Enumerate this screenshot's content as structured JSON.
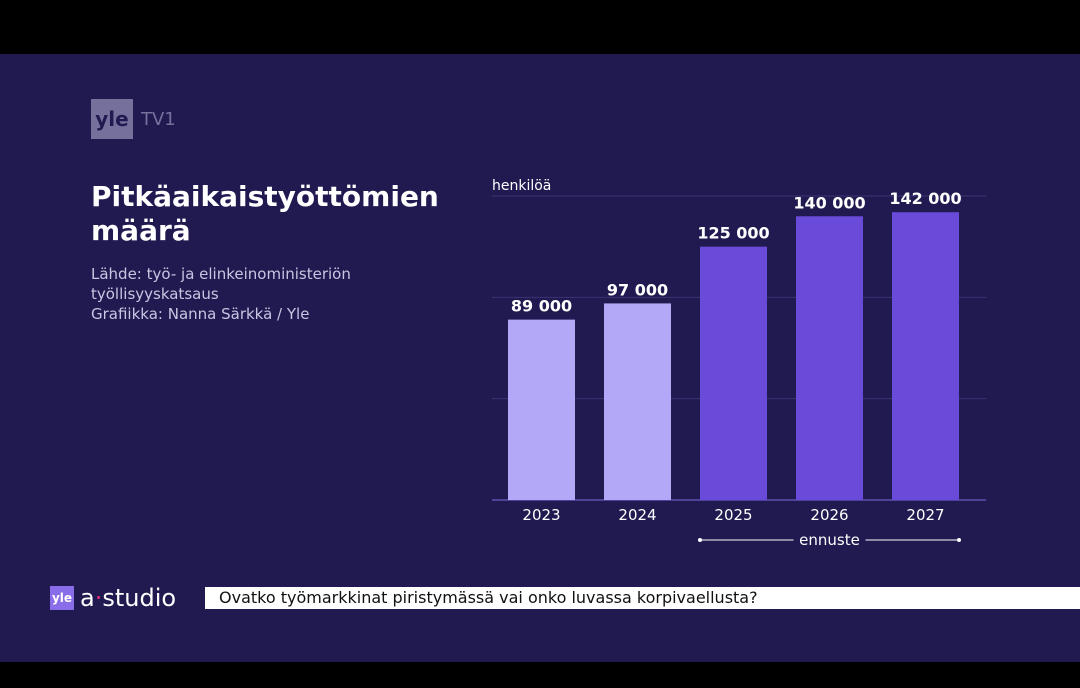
{
  "logo": {
    "brand": "yle",
    "channel": "TV1"
  },
  "title": "Pitkäaikaistyöttömien määrä",
  "source_lines": [
    "Lähde: työ- ja elinkeinoministeriön",
    "työllisyyskatsaus",
    "Grafiikka: Nanna Särkkä / Yle"
  ],
  "chart_data": {
    "type": "bar",
    "ylabel": "henkilöä",
    "categories": [
      "2023",
      "2024",
      "2025",
      "2026",
      "2027"
    ],
    "values": [
      89000,
      97000,
      125000,
      140000,
      142000
    ],
    "value_labels": [
      "89 000",
      "97 000",
      "125 000",
      "140 000",
      "142 000"
    ],
    "ylim": [
      0,
      150000
    ],
    "grid": true,
    "forecast_label": "ennuste",
    "forecast_from_index": 2,
    "colors": {
      "actual": "#b3a7f7",
      "forecast": "#6a4ad8",
      "grid": "#3a3475"
    }
  },
  "bottom": {
    "mini_logo": "yle",
    "program_prefix": "a",
    "program_suffix": "studio",
    "ticker_text": "Ovatko työmarkkinat piristymässä vai onko luvassa korpivaellusta?"
  }
}
